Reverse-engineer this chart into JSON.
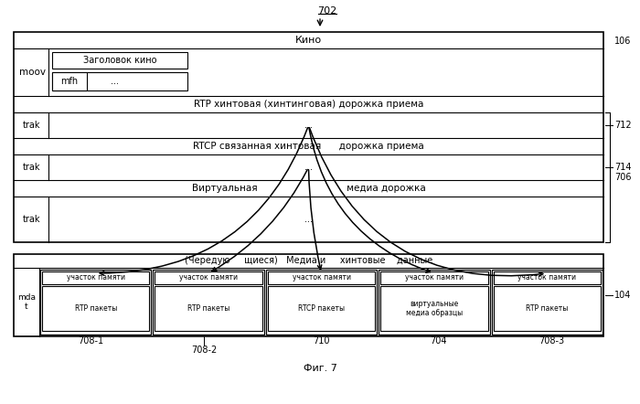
{
  "bg_color": "#ffffff",
  "title_label": "702",
  "ref_106": "106",
  "ref_712": "712",
  "ref_714": "714",
  "ref_706": "706",
  "ref_104": "104",
  "ref_708_1": "708-1",
  "ref_708_2": "708-2",
  "ref_710": "710",
  "ref_704": "704",
  "ref_708_3": "708-3",
  "fig_label": "Фиг. 7",
  "moov_label": "moov",
  "mfh_label": "mfh",
  "dots": "...",
  "trak": "trak",
  "mdat_label": "mda\nt",
  "kino_label": "Кино",
  "zagolovok_label": "Заголовок кино",
  "rtp_hint_label": "RTP хинтовая (хинтинговая) дорожка приема",
  "rtcp_hint_label": "RTCP связанная хинтовая      дорожка приема",
  "virtual_label": "Виртуальная                              медиа дорожка",
  "chereduyu_label": "(Чередую     щиеся)   Медиа и     хинтовые    данные",
  "chunk1_top": "участок памяти",
  "chunk1_bot": "RTP пакеты",
  "chunk2_top": "участок памяти",
  "chunk2_bot": "RTP пакеты",
  "chunk3_top": "участок памяти",
  "chunk3_bot": "RTCP пакеты",
  "chunk4_top": "участок памяти",
  "chunk4_bot": "виртуальные\nмедиа образцы",
  "chunk5_top": "участок памяти",
  "chunk5_bot": "RTP пакеты"
}
